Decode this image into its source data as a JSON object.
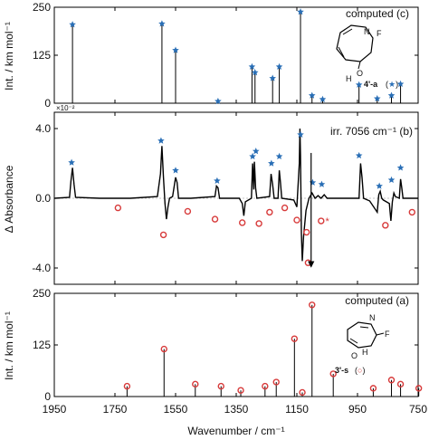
{
  "x_axis": {
    "label": "Wavenumber / cm⁻¹",
    "ticks": [
      "1950",
      "1750",
      "1550",
      "1350",
      "1150",
      "950",
      "750"
    ],
    "xlim": [
      1950,
      750
    ]
  },
  "colors": {
    "star": "#2a6fb6",
    "circle": "#d73a3a",
    "line": "#000000"
  },
  "chart_data": [
    {
      "type": "bar",
      "panel": "top",
      "title": "computed (c)",
      "ylabel": "Int. / km mol⁻¹",
      "ylim": [
        0,
        250
      ],
      "yticks": [
        "0",
        "125",
        "250"
      ],
      "marker": "star",
      "molecule_label": "4'-a",
      "molecule_atoms": {
        "F": "F",
        "N": "N",
        "O": "O",
        "H": "H"
      },
      "x": [
        1890,
        1595,
        1550,
        1410,
        1298,
        1288,
        1230,
        1208,
        1138,
        1100,
        1065,
        945,
        885,
        838,
        808
      ],
      "values": [
        205,
        207,
        138,
        5,
        95,
        80,
        65,
        95,
        238,
        20,
        10,
        48,
        12,
        20,
        50
      ]
    },
    {
      "type": "line",
      "panel": "middle",
      "title": "irr. 7056 cm⁻¹ (b)",
      "ylabel": "Δ Absorbance",
      "ylim": [
        -4.0,
        4.0
      ],
      "yticks": [
        "-4.0",
        "0.0",
        "4.0"
      ],
      "y_multiplier": "×10⁻²",
      "x": [
        1950,
        1900,
        1895,
        1890,
        1885,
        1880,
        1800,
        1700,
        1610,
        1600,
        1595,
        1590,
        1585,
        1580,
        1575,
        1570,
        1560,
        1550,
        1545,
        1540,
        1500,
        1420,
        1415,
        1410,
        1405,
        1340,
        1330,
        1325,
        1320,
        1300,
        1296,
        1292,
        1290,
        1286,
        1282,
        1240,
        1235,
        1230,
        1225,
        1212,
        1208,
        1204,
        1200,
        1160,
        1150,
        1142,
        1140,
        1138,
        1135,
        1132,
        1128,
        1120,
        1110,
        1100,
        1090,
        1080,
        1070,
        1060,
        1050,
        1040,
        945,
        940,
        935,
        930,
        910,
        885,
        880,
        875,
        870,
        865,
        845,
        840,
        835,
        830,
        825,
        812,
        808,
        804,
        800,
        750
      ],
      "y": [
        0.0,
        0.05,
        1.0,
        1.75,
        0.8,
        0.05,
        0.0,
        0.0,
        0.1,
        1.4,
        3.0,
        1.2,
        -0.3,
        -1.2,
        -0.5,
        0.0,
        0.1,
        1.2,
        0.9,
        0.0,
        0.0,
        0.1,
        0.7,
        0.6,
        0.0,
        0.0,
        -0.3,
        -1.0,
        -0.2,
        0.0,
        2.0,
        0.5,
        2.1,
        0.6,
        0.0,
        0.1,
        1.4,
        0.8,
        0.0,
        0.0,
        1.6,
        0.9,
        0.0,
        -0.1,
        -0.5,
        2.0,
        4.0,
        2.5,
        -2.0,
        -3.6,
        -2.2,
        -0.7,
        0.0,
        0.3,
        0.0,
        0.15,
        0.0,
        0.2,
        0.0,
        0.0,
        0.0,
        2.0,
        1.2,
        0.0,
        -0.15,
        -0.8,
        0.2,
        0.4,
        0.0,
        -0.1,
        -0.3,
        -1.3,
        -0.2,
        0.3,
        0.1,
        0.0,
        1.1,
        0.6,
        0.0,
        0.0
      ],
      "star_markers": [
        [
          1893,
          2.05
        ],
        [
          1598,
          3.3
        ],
        [
          1550,
          1.6
        ],
        [
          1413,
          1.0
        ],
        [
          1296,
          2.4
        ],
        [
          1285,
          2.7
        ],
        [
          1234,
          2.0
        ],
        [
          1208,
          2.4
        ],
        [
          1138,
          3.65
        ],
        [
          1098,
          0.9
        ],
        [
          1068,
          0.8
        ],
        [
          945,
          2.45
        ],
        [
          878,
          0.7
        ],
        [
          838,
          1.05
        ],
        [
          808,
          1.75
        ]
      ],
      "circle_markers": [
        [
          1740,
          -0.55
        ],
        [
          1590,
          -2.1
        ],
        [
          1510,
          -0.75
        ],
        [
          1420,
          -1.2
        ],
        [
          1330,
          -1.4
        ],
        [
          1275,
          -1.45
        ],
        [
          1240,
          -0.8
        ],
        [
          1190,
          -0.55
        ],
        [
          1150,
          -1.25
        ],
        [
          1118,
          -1.95
        ],
        [
          1113,
          -3.7
        ],
        [
          1070,
          -1.3
        ],
        [
          858,
          -1.55
        ],
        [
          770,
          -0.8
        ]
      ],
      "star_circle_label": {
        "x": 1035,
        "y": -1.3,
        "text": "*"
      },
      "arrows": [
        {
          "x": 1103,
          "from": 2.6,
          "to": -3.8
        }
      ]
    },
    {
      "type": "bar",
      "panel": "bottom",
      "title": "computed (a)",
      "ylabel": "Int. / km mol⁻¹",
      "ylim": [
        0,
        250
      ],
      "yticks": [
        "0",
        "125",
        "250"
      ],
      "marker": "circle",
      "molecule_label": "3'-s",
      "molecule_atoms": {
        "F": "F",
        "N": "N",
        "O": "O",
        "H": "H"
      },
      "x": [
        1710,
        1588,
        1485,
        1400,
        1335,
        1255,
        1218,
        1158,
        1132,
        1100,
        1030,
        898,
        838,
        808,
        748
      ],
      "values": [
        25,
        115,
        30,
        25,
        15,
        25,
        35,
        140,
        10,
        222,
        55,
        20,
        40,
        30,
        20
      ]
    }
  ]
}
